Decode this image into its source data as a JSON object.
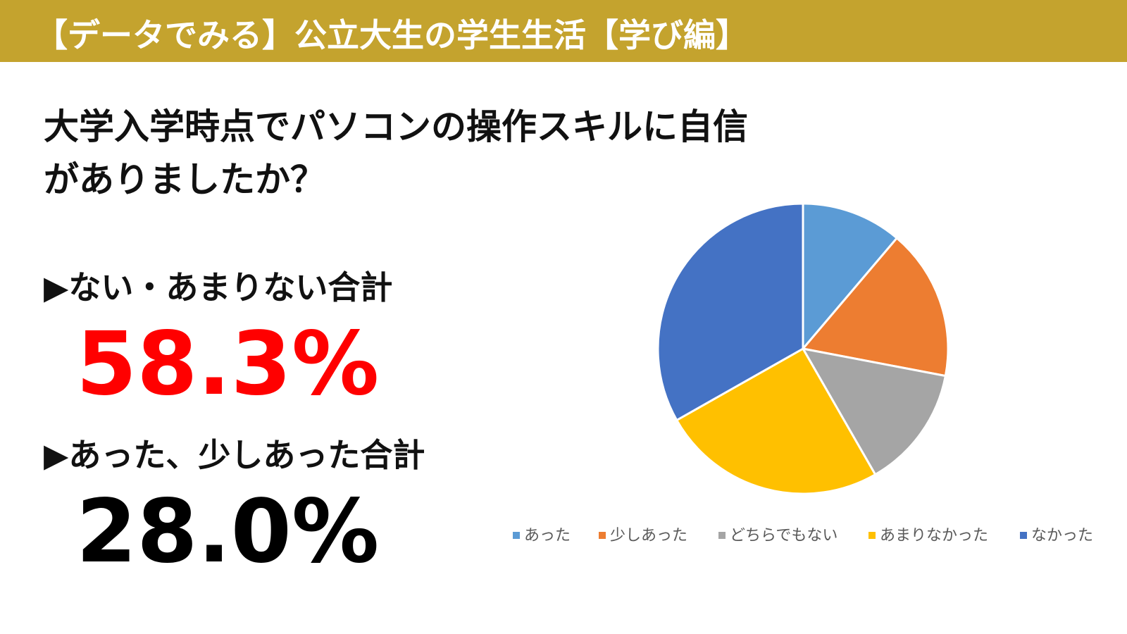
{
  "header": {
    "title": "【データでみる】公立大生の学生生活【学び編】"
  },
  "question": {
    "line1": "大学入学時点でパソコンの操作スキルに自信",
    "line2": "がありましたか？"
  },
  "summary": [
    {
      "label": "▶ない・あまりない合計",
      "value": "58.3%"
    },
    {
      "label": "▶あった、少しあった合計",
      "value": "28.0%"
    }
  ],
  "chart_data": {
    "type": "pie",
    "categories": [
      "あった",
      "少しあった",
      "どちらでもない",
      "あまりなかった",
      "なかった"
    ],
    "values": [
      11.2,
      16.8,
      13.7,
      25.1,
      33.2
    ],
    "colors": [
      "#5b9bd5",
      "#ed7d31",
      "#a5a5a5",
      "#ffc000",
      "#4472c4"
    ],
    "legend": "bottom"
  }
}
